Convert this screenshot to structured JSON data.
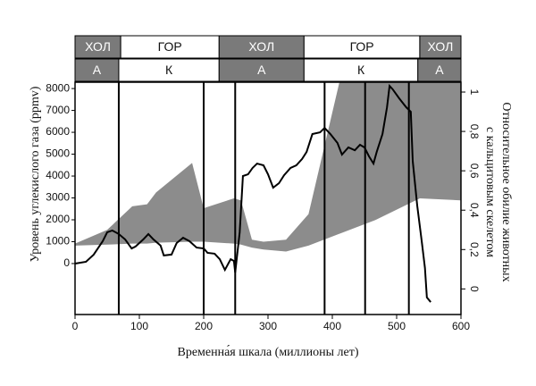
{
  "chart_data": {
    "type": "line",
    "x_label": "Временна́я шкала (миллионы лет)",
    "y_label": "Уровень углекислого газа (ppmv)",
    "y2_label": [
      "Относительное обилие животных",
      "с кальцитовым скелетом"
    ],
    "xlim": [
      0,
      600
    ],
    "xticks": [
      0,
      100,
      200,
      300,
      400,
      500,
      600
    ],
    "ylim": [
      -2330,
      8290
    ],
    "yticks": [
      0,
      1000,
      2000,
      3000,
      4000,
      5000,
      6000,
      7000,
      8000
    ],
    "y2lim": [
      -0.13,
      1.05
    ],
    "y2ticks": [
      0,
      {
        "value": 0.2,
        "label": "0,2"
      },
      {
        "value": 0.4,
        "label": "0,4"
      },
      {
        "value": 0.6,
        "label": "0,6"
      },
      {
        "value": 0.8,
        "label": "0,8"
      },
      1
    ],
    "band_rows": [
      {
        "labels": [
          "ХОЛ",
          "ГОР",
          "ХОЛ",
          "ГОР",
          "ХОЛ"
        ],
        "edges": [
          0,
          71,
          224,
          356,
          536,
          600
        ],
        "fills": [
          "#7a7a7a",
          "#ffffff",
          "#7a7a7a",
          "#ffffff",
          "#7a7a7a"
        ]
      },
      {
        "labels": [
          "А",
          "К",
          "А",
          "К",
          "А"
        ],
        "edges": [
          0,
          68,
          224,
          356,
          533,
          600
        ],
        "fills": [
          "#7a7a7a",
          "#ffffff",
          "#7a7a7a",
          "#ffffff",
          "#7a7a7a"
        ]
      }
    ],
    "vlines": [
      68,
      200,
      249,
      388,
      451,
      519
    ],
    "area": {
      "axis": "y2",
      "color": "#8c8c8c",
      "x": [
        0,
        50,
        89,
        112,
        126,
        182,
        200,
        247,
        258,
        275,
        293,
        328,
        363,
        411,
        467,
        536,
        600
      ],
      "upper": [
        0.23,
        0.3,
        0.42,
        0.43,
        0.49,
        0.64,
        0.41,
        0.46,
        0.45,
        0.25,
        0.24,
        0.25,
        0.38,
        1.05,
        1.05,
        1.05,
        1.05
      ],
      "lower": [
        0.22,
        0.225,
        0.23,
        0.23,
        0.235,
        0.24,
        0.24,
        0.23,
        0.225,
        0.21,
        0.2,
        0.19,
        0.22,
        0.28,
        0.35,
        0.46,
        0.45
      ]
    },
    "series": [
      {
        "color": "#000000",
        "x": [
          0,
          17,
          29,
          43,
          50,
          58,
          68,
          78,
          88,
          94,
          106,
          114,
          122,
          133,
          138,
          150,
          158,
          168,
          178,
          189,
          200,
          206,
          217,
          225,
          233,
          242,
          247,
          249,
          256,
          261,
          269,
          276,
          283,
          293,
          300,
          308,
          317,
          325,
          335,
          344,
          353,
          360,
          369,
          381,
          388,
          397,
          408,
          415,
          425,
          435,
          443,
          450,
          457,
          464,
          469,
          478,
          485,
          489,
          494,
          504,
          515,
          522,
          525,
          532,
          539,
          544,
          547,
          553
        ],
        "values": [
          0,
          82,
          408,
          1020,
          1430,
          1510,
          1350,
          1100,
          690,
          780,
          1100,
          1350,
          1100,
          820,
          370,
          410,
          940,
          1180,
          1020,
          730,
          690,
          490,
          450,
          200,
          -290,
          200,
          120,
          -410,
          1430,
          4000,
          4080,
          4370,
          4570,
          4490,
          4080,
          3470,
          3670,
          4040,
          4370,
          4490,
          4780,
          5100,
          5920,
          6000,
          6200,
          5920,
          5510,
          4980,
          5310,
          5180,
          5430,
          5310,
          4900,
          4570,
          5100,
          5920,
          7140,
          8120,
          7960,
          7550,
          7140,
          6940,
          4690,
          2650,
          1020,
          -200,
          -1550,
          -1760
        ]
      }
    ]
  }
}
